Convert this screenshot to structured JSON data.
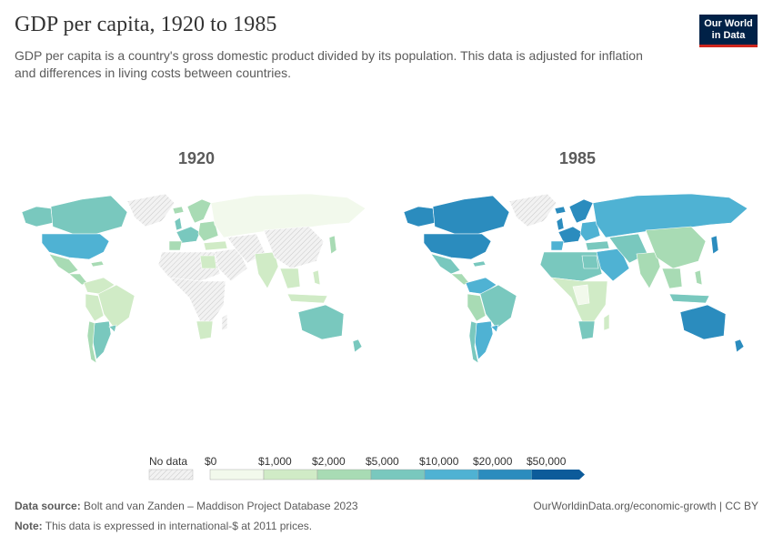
{
  "header": {
    "title": "GDP per capita, 1920 to 1985",
    "subtitle": "GDP per capita is a country's gross domestic product divided by its population. This data is adjusted for inflation and differences in living costs between countries.",
    "logo_line1": "Our World",
    "logo_line2": "in Data"
  },
  "maps": [
    {
      "year_label": "1920"
    },
    {
      "year_label": "1985"
    }
  ],
  "legend": {
    "no_data_label": "No data",
    "bins": [
      {
        "label": "$0",
        "color": "#f2f9ec"
      },
      {
        "label": "$1,000",
        "color": "#d0ebc6"
      },
      {
        "label": "$2,000",
        "color": "#a8dbb4"
      },
      {
        "label": "$5,000",
        "color": "#79c8be"
      },
      {
        "label": "$10,000",
        "color": "#4fb2d3"
      },
      {
        "label": "$20,000",
        "color": "#2b8cbe"
      },
      {
        "label": "$50,000",
        "color": "#0c5b9a"
      }
    ],
    "no_data_color": "#eeeeee"
  },
  "footer": {
    "source_label": "Data source:",
    "source_text": "Bolt and van Zanden – Maddison Project Database 2023",
    "note_label": "Note:",
    "note_text": "This data is expressed in international-$ at 2011 prices.",
    "attribution": "OurWorldinData.org/economic-growth | CC BY"
  }
}
